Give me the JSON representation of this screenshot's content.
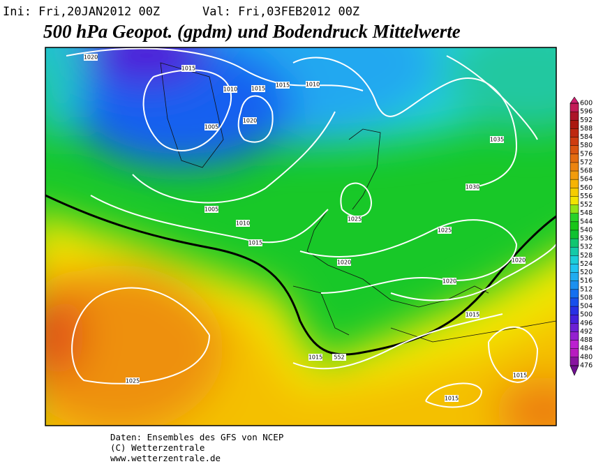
{
  "header": {
    "ini": "Ini: Fri,20JAN2012 00Z",
    "val": "Val: Fri,03FEB2012 00Z",
    "title": "500 hPa Geopot. (gpdm) und Bodendruck Mittelwerte"
  },
  "colorbar": {
    "labels": [
      600,
      596,
      592,
      588,
      584,
      580,
      576,
      572,
      568,
      564,
      560,
      556,
      552,
      548,
      544,
      540,
      536,
      532,
      528,
      524,
      520,
      516,
      512,
      508,
      504,
      500,
      496,
      492,
      488,
      484,
      480,
      476
    ]
  },
  "map": {
    "contour_labels": [
      "1020",
      "1015",
      "1010",
      "1015",
      "1015",
      "1010",
      "1020",
      "1005",
      "1035",
      "1030",
      "1005",
      "1010",
      "1015",
      "1025",
      "1025",
      "1020",
      "1020",
      "1020",
      "1015",
      "1015",
      "552",
      "1025",
      "1015",
      "1015"
    ]
  },
  "footer": {
    "lines": [
      "Daten: Ensembles des GFS von NCEP",
      "(C) Wetterzentrale",
      "www.wetterzentrale.de"
    ]
  }
}
